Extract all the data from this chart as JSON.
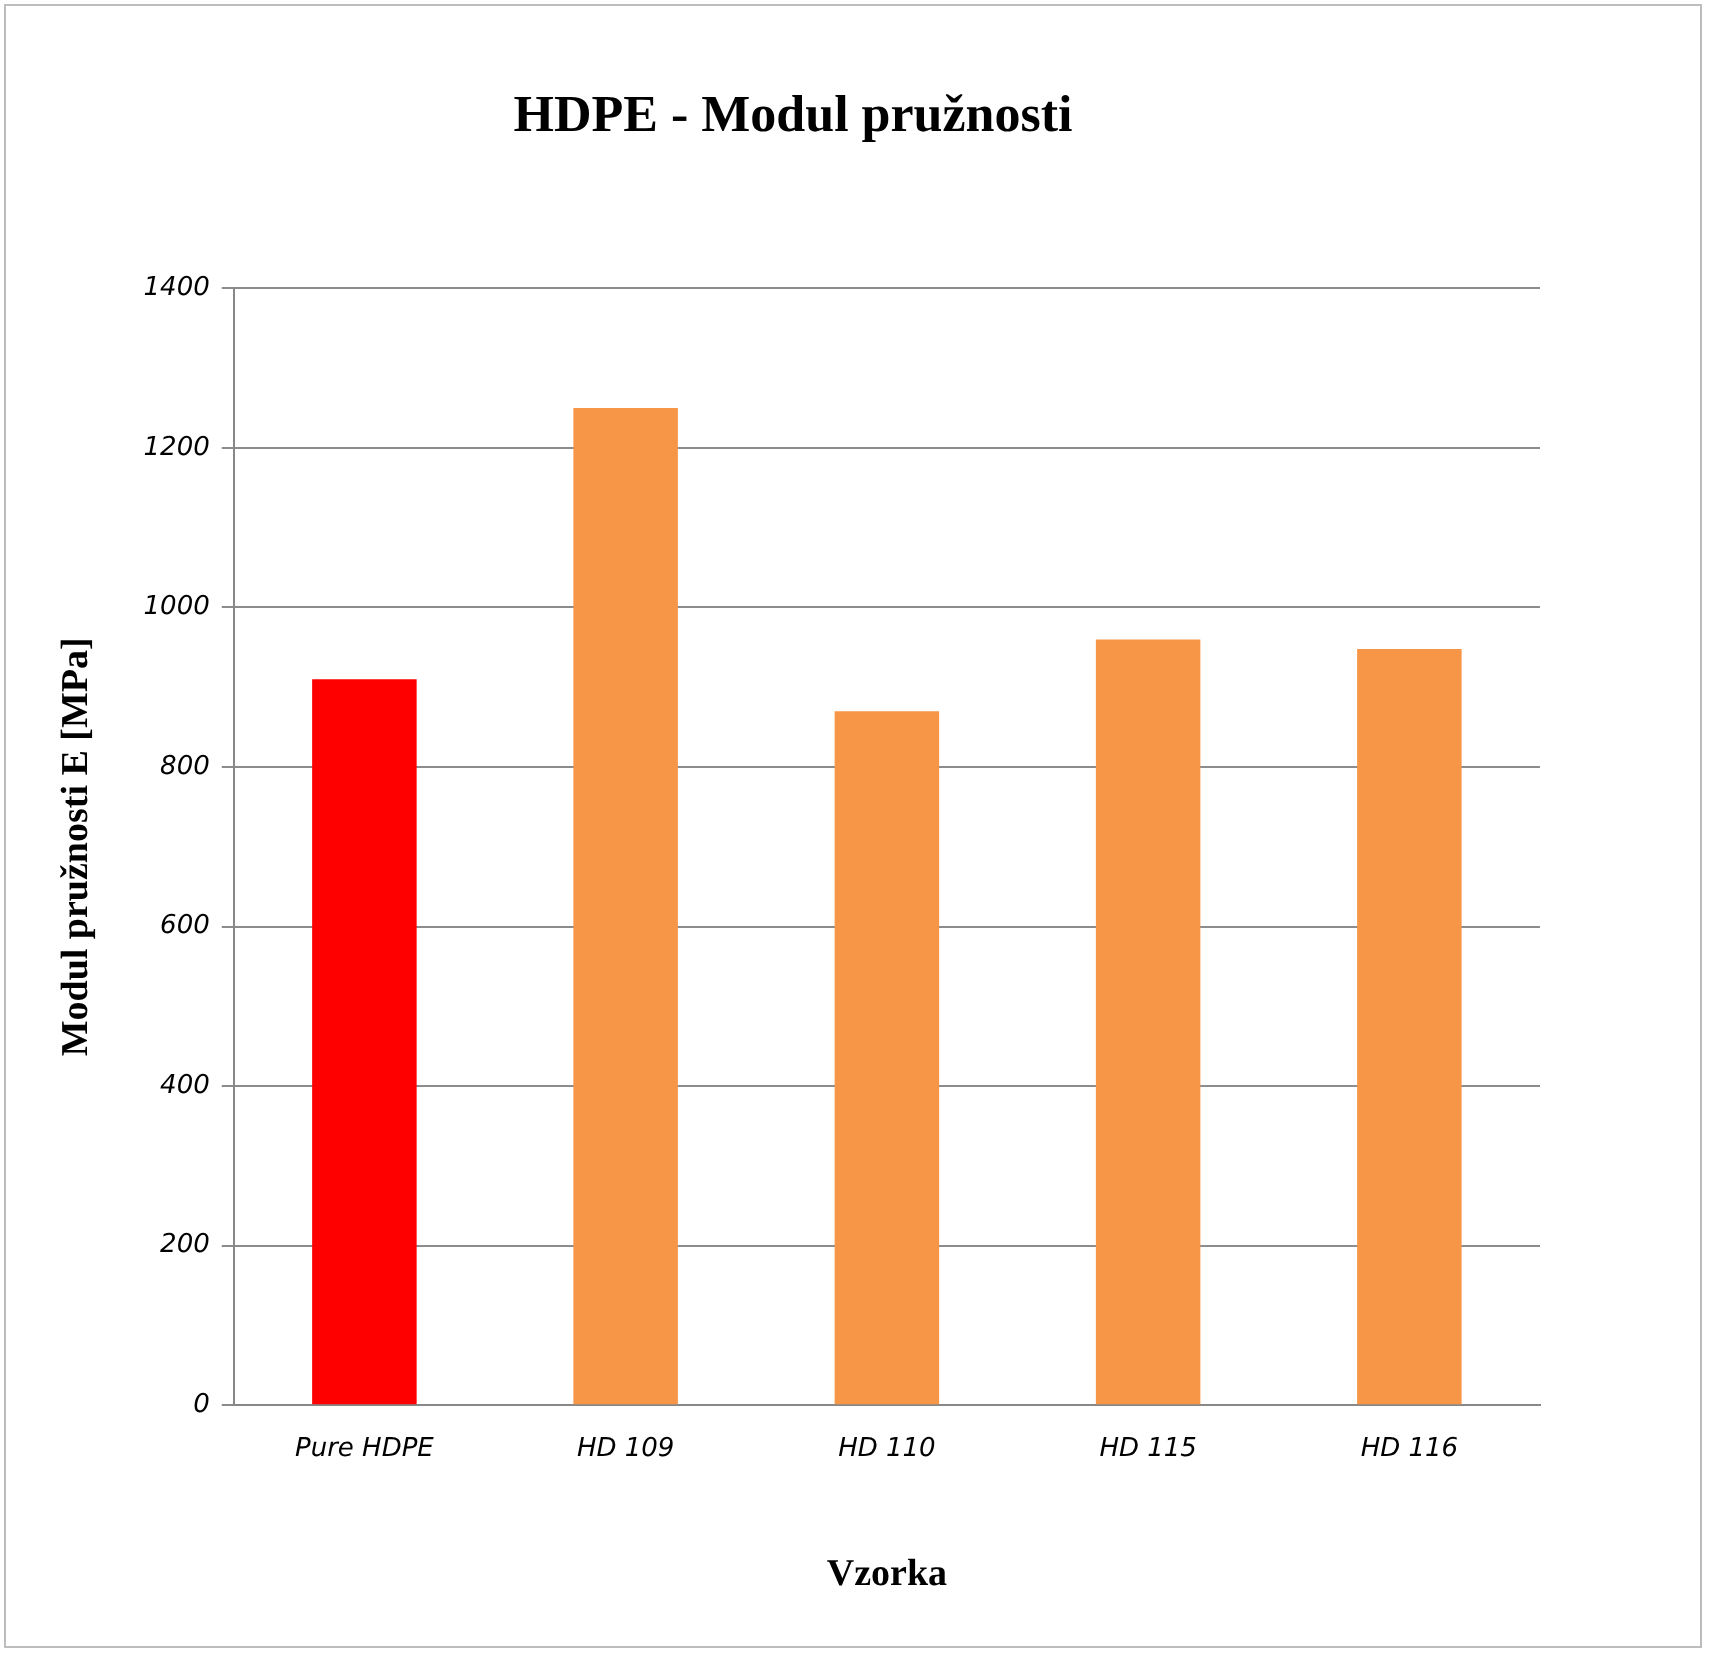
{
  "chart_data": {
    "type": "bar",
    "title": "HDPE - Modul pružnosti",
    "xlabel": "Vzorka",
    "ylabel": "Modul pružnosti E [MPa]",
    "categories": [
      "Pure HDPE",
      "HD 109",
      "HD 110",
      "HD 115",
      "HD 116"
    ],
    "values": [
      910,
      1250,
      870,
      960,
      948
    ],
    "colors": [
      "#ff0000",
      "#f79646",
      "#f79646",
      "#f79646",
      "#f79646"
    ],
    "ylim": [
      0,
      1400
    ],
    "yticks": [
      0,
      200,
      400,
      600,
      800,
      1000,
      1200,
      1400
    ],
    "grid": "y",
    "legend": false
  }
}
